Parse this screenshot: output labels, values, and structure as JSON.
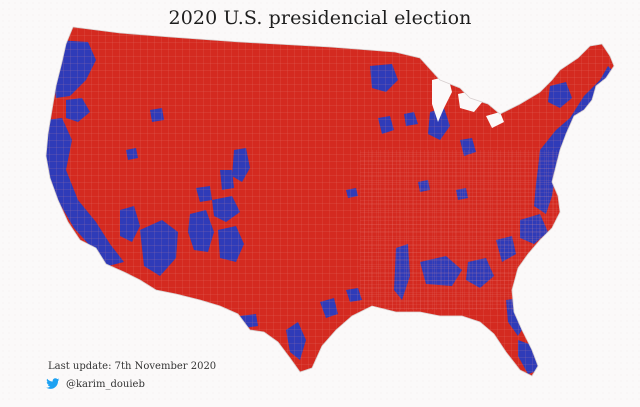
{
  "title": "2020 U.S. presidencial election",
  "footer": {
    "last_update": "Last update: 7th November 2020",
    "handle": "@karim_douieb"
  },
  "map": {
    "colors": {
      "republican": "#d42a20",
      "democrat": "#2f3bb8",
      "county_border": "#e88a85",
      "background": "#fbf9f9"
    },
    "icons": [
      "twitter-icon"
    ]
  }
}
